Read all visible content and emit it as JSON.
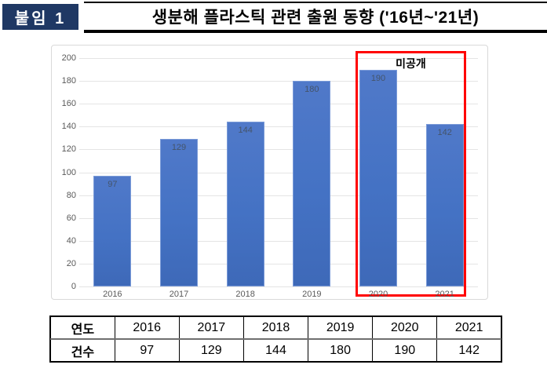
{
  "header": {
    "badge_label": "붙임 1",
    "title": "생분해 플라스틱 관련 출원 동향 ('16년~'21년)"
  },
  "chart_data": {
    "type": "bar",
    "title": "",
    "xlabel": "",
    "ylabel": "",
    "categories": [
      "2016",
      "2017",
      "2018",
      "2019",
      "2020",
      "2021"
    ],
    "values": [
      97,
      129,
      144,
      180,
      190,
      142
    ],
    "ylim": [
      0,
      200
    ],
    "ytick_step": 20,
    "grid": true,
    "legend": "none",
    "bar_color": "#4472c4",
    "label_color": "#44546a",
    "axis_color": "#595959",
    "annotation": "미공개",
    "highlight_categories": [
      "2020",
      "2021"
    ],
    "highlight_box_color": "#ff0000"
  },
  "table": {
    "row_headers": [
      "연도",
      "건수"
    ],
    "years": [
      "2016",
      "2017",
      "2018",
      "2019",
      "2020",
      "2021"
    ],
    "counts": [
      "97",
      "129",
      "144",
      "180",
      "190",
      "142"
    ]
  },
  "colors": {
    "badge_bg": "#1f3864",
    "badge_text": "#ffffff",
    "chart_border": "#d9d9d9",
    "gridline": "#e4e4e4"
  }
}
